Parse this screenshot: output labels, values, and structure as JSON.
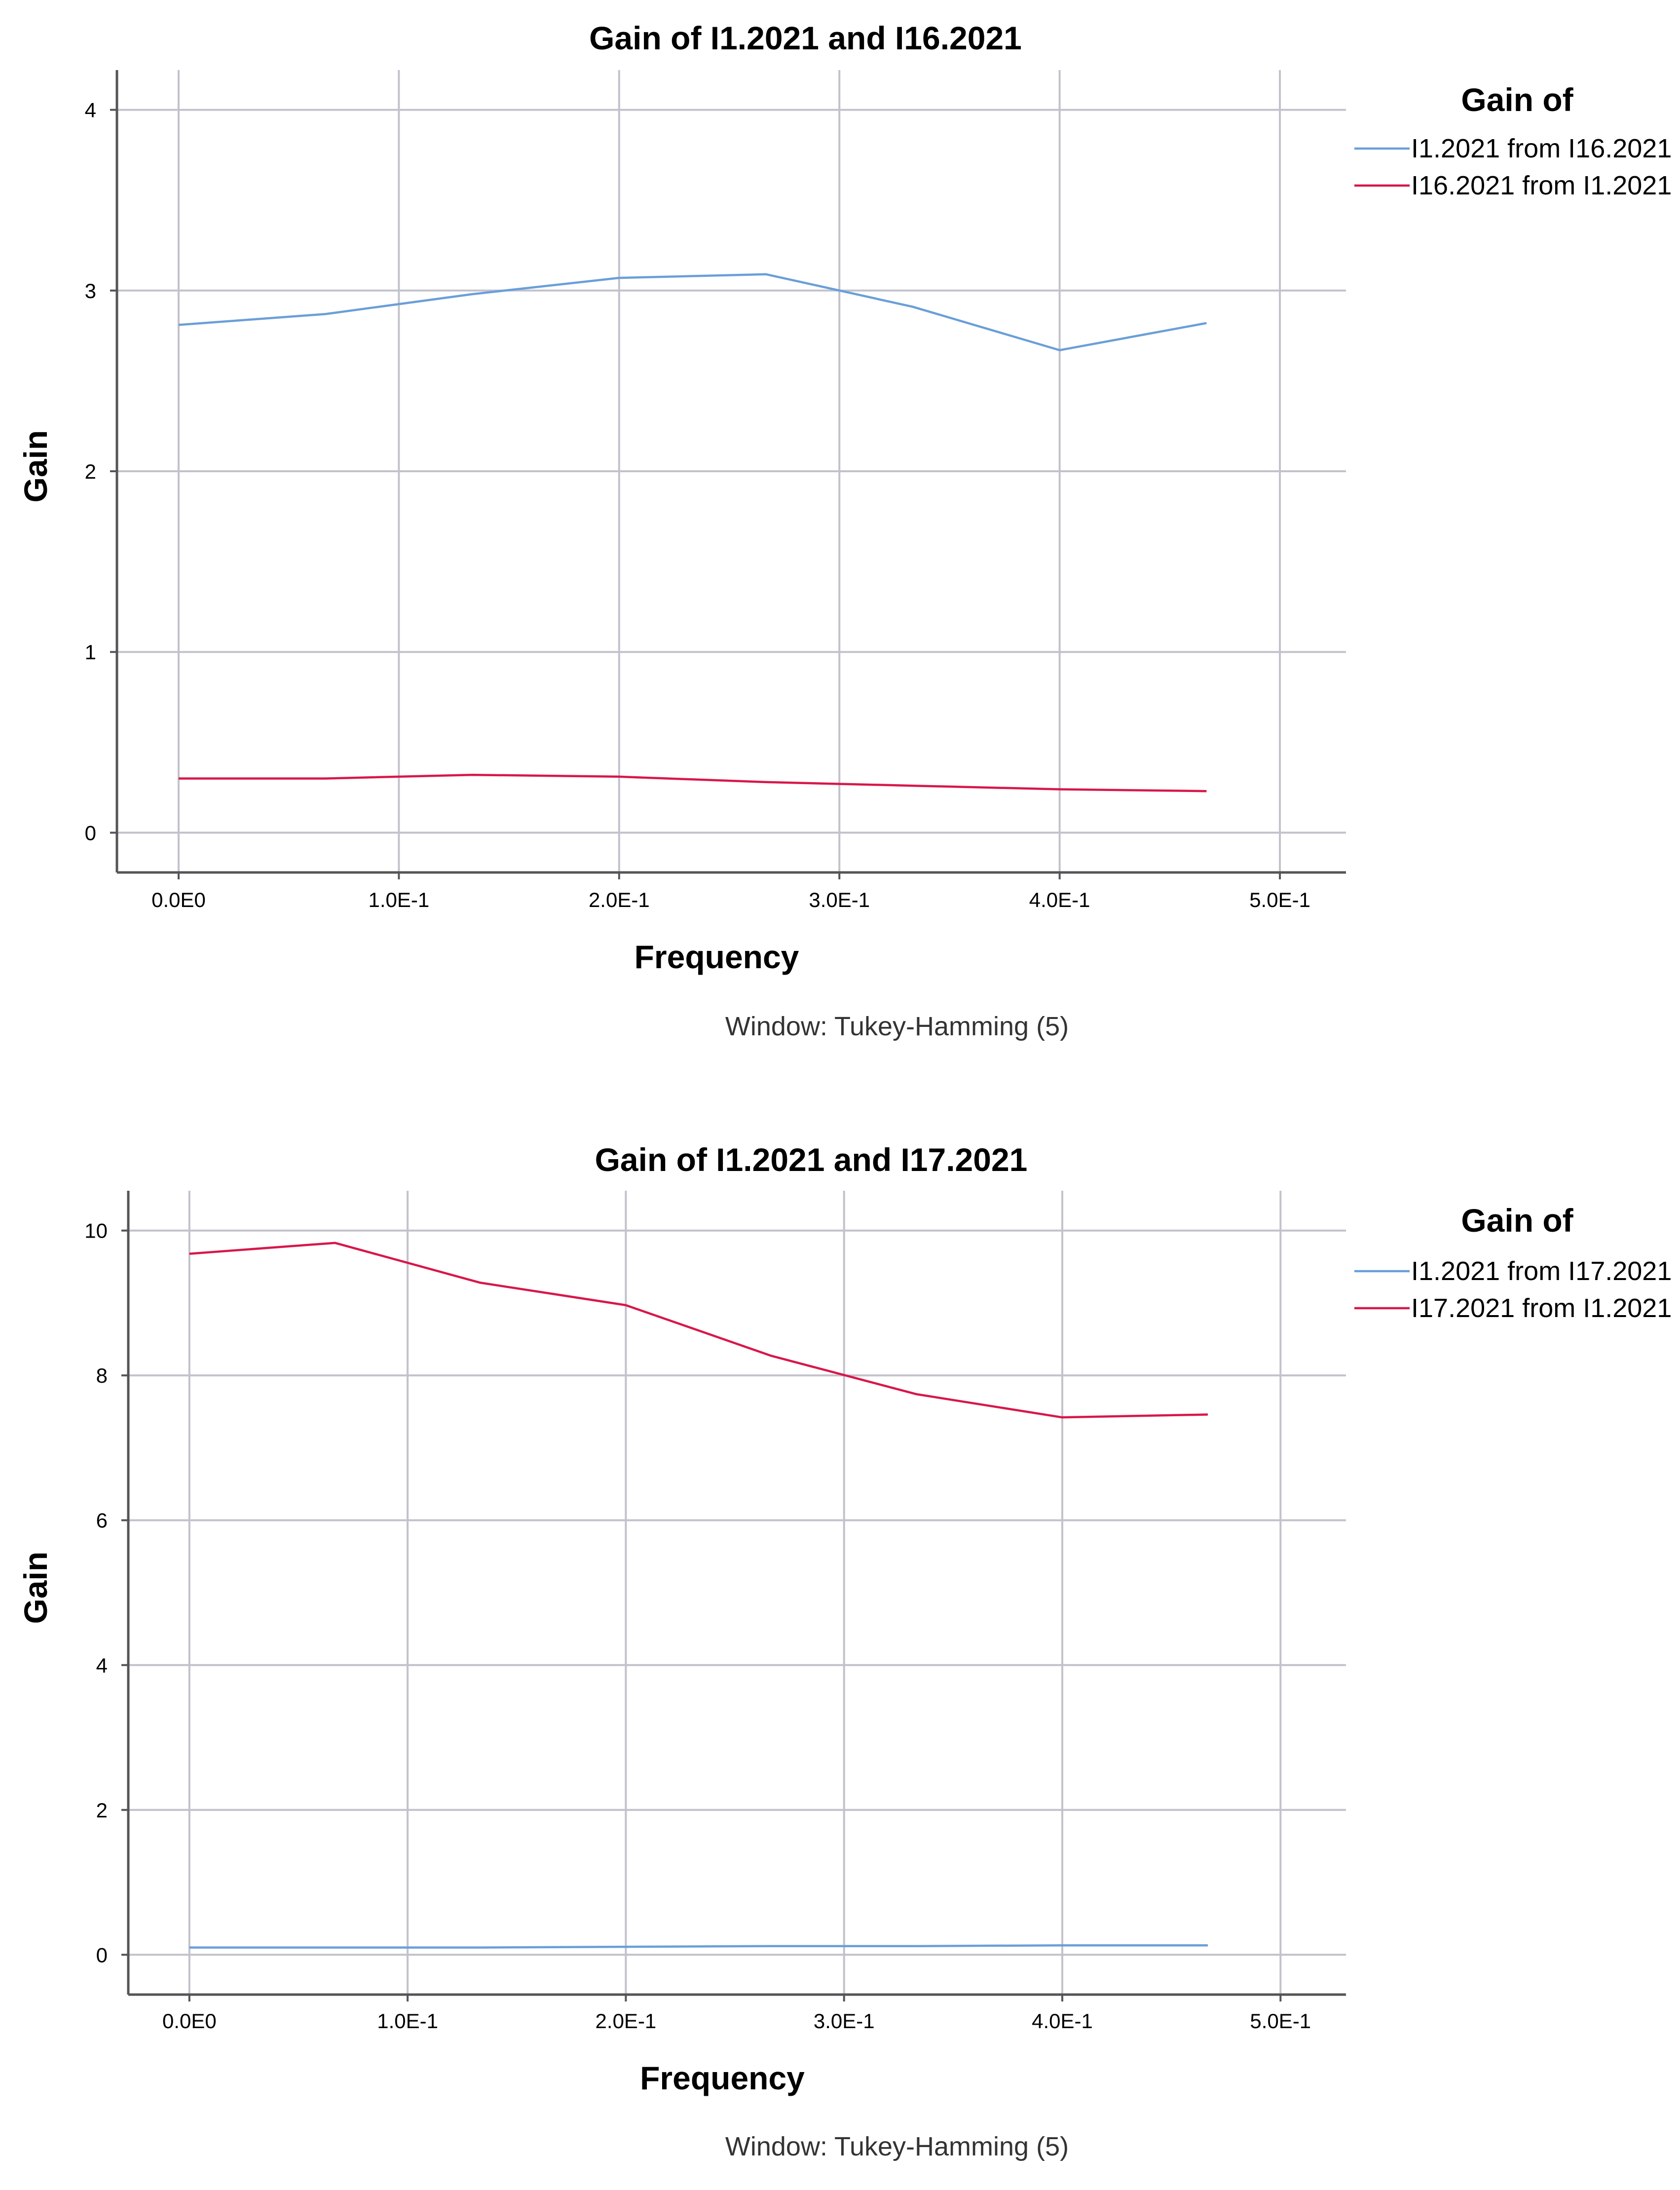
{
  "chart_data": [
    {
      "type": "line",
      "title": "Gain of I1.2021 and I16.2021",
      "xlabel": "Frequency",
      "ylabel": "Gain",
      "footnote": "Window: Tukey-Hamming (5)",
      "xlim": [
        -0.028,
        0.53
      ],
      "ylim": [
        -0.22,
        4.22
      ],
      "xticks": [
        0,
        0.1,
        0.2,
        0.3,
        0.4,
        0.5
      ],
      "xtick_labels": [
        "0.0E0",
        "1.0E-1",
        "2.0E-1",
        "3.0E-1",
        "4.0E-1",
        "5.0E-1"
      ],
      "yticks": [
        0,
        1,
        2,
        3,
        4
      ],
      "ytick_labels": [
        "0",
        "1",
        "2",
        "3",
        "4"
      ],
      "grid": true,
      "legend": {
        "title": "Gain of",
        "placement": "right"
      },
      "x": [
        0,
        0.0667,
        0.1333,
        0.2,
        0.2667,
        0.3333,
        0.4,
        0.4667
      ],
      "series": [
        {
          "name": "I1.2021 from I16.2021",
          "color": "#6a9fd8",
          "values": [
            2.81,
            2.87,
            2.98,
            3.07,
            3.09,
            2.91,
            2.67,
            2.82
          ]
        },
        {
          "name": "I16.2021 from I1.2021",
          "color": "#d8174a",
          "values": [
            0.3,
            0.3,
            0.32,
            0.31,
            0.28,
            0.26,
            0.24,
            0.23
          ]
        }
      ]
    },
    {
      "type": "line",
      "title": "Gain of I1.2021 and I17.2021",
      "xlabel": "Frequency",
      "ylabel": "Gain",
      "footnote": "Window: Tukey-Hamming (5)",
      "xlim": [
        -0.028,
        0.53
      ],
      "ylim": [
        -0.55,
        10.55
      ],
      "xticks": [
        0,
        0.1,
        0.2,
        0.3,
        0.4,
        0.5
      ],
      "xtick_labels": [
        "0.0E0",
        "1.0E-1",
        "2.0E-1",
        "3.0E-1",
        "4.0E-1",
        "5.0E-1"
      ],
      "yticks": [
        0,
        2,
        4,
        6,
        8,
        10
      ],
      "ytick_labels": [
        "0",
        "2",
        "4",
        "6",
        "8",
        "10"
      ],
      "grid": true,
      "legend": {
        "title": "Gain of",
        "placement": "right"
      },
      "x": [
        0,
        0.0667,
        0.1333,
        0.2,
        0.2667,
        0.3333,
        0.4,
        0.4667
      ],
      "series": [
        {
          "name": "I1.2021 from I17.2021",
          "color": "#6a9fd8",
          "values": [
            0.1,
            0.1,
            0.1,
            0.11,
            0.12,
            0.12,
            0.13,
            0.13
          ]
        },
        {
          "name": "I17.2021 from I1.2021",
          "color": "#d8174a",
          "values": [
            9.68,
            9.83,
            9.28,
            8.97,
            8.27,
            7.74,
            7.42,
            7.46
          ]
        }
      ]
    }
  ]
}
